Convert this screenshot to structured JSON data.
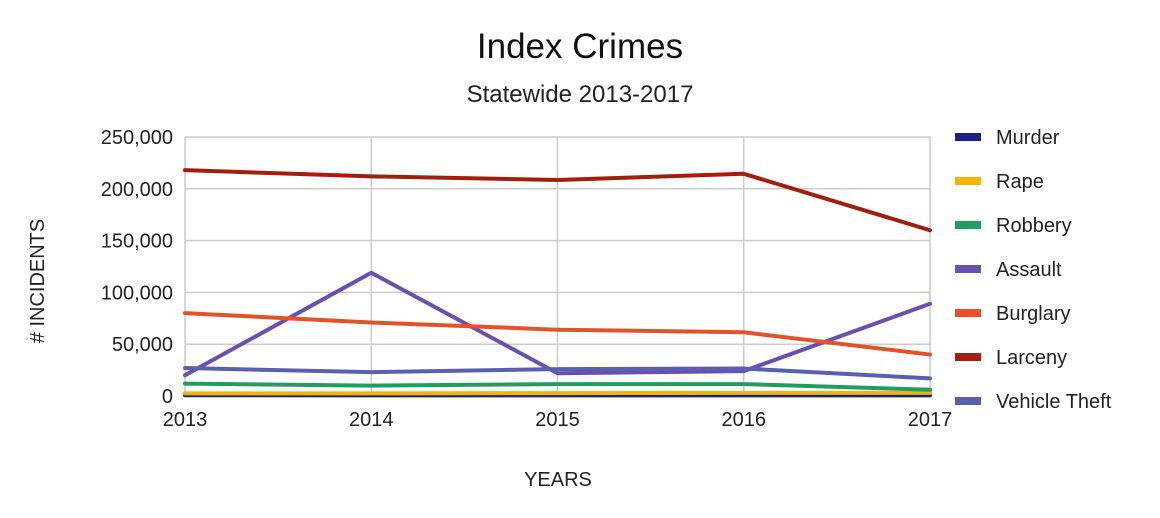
{
  "chart_data": {
    "type": "line",
    "title": "Index Crimes",
    "subtitle": "Statewide 2013-2017",
    "xlabel": "YEARS",
    "ylabel": "# INCIDENTS",
    "categories": [
      "2013",
      "2014",
      "2015",
      "2016",
      "2017"
    ],
    "ylim": [
      0,
      250000
    ],
    "yticks": [
      0,
      50000,
      100000,
      150000,
      200000,
      250000
    ],
    "ytick_labels": [
      "0",
      "50,000",
      "100,000",
      "150,000",
      "200,000",
      "250,000"
    ],
    "grid": true,
    "legend_position": "right",
    "series": [
      {
        "name": "Murder",
        "color": "#1a237e",
        "values": [
          700,
          650,
          600,
          650,
          600
        ]
      },
      {
        "name": "Rape",
        "color": "#f4b400",
        "values": [
          2500,
          2500,
          2800,
          3000,
          3000
        ]
      },
      {
        "name": "Robbery",
        "color": "#1e9e63",
        "values": [
          12000,
          10000,
          11500,
          11500,
          6000
        ]
      },
      {
        "name": "Assault",
        "color": "#6b4fb0",
        "values": [
          20000,
          119000,
          22000,
          24000,
          89000
        ]
      },
      {
        "name": "Burglary",
        "color": "#e2532a",
        "values": [
          80000,
          71000,
          64000,
          61500,
          40000
        ]
      },
      {
        "name": "Larceny",
        "color": "#a11f0c",
        "values": [
          218000,
          212000,
          208500,
          214500,
          160000
        ]
      },
      {
        "name": "Vehicle Theft",
        "color": "#5b5fb0",
        "values": [
          27000,
          23000,
          26000,
          26500,
          17000
        ]
      }
    ]
  }
}
